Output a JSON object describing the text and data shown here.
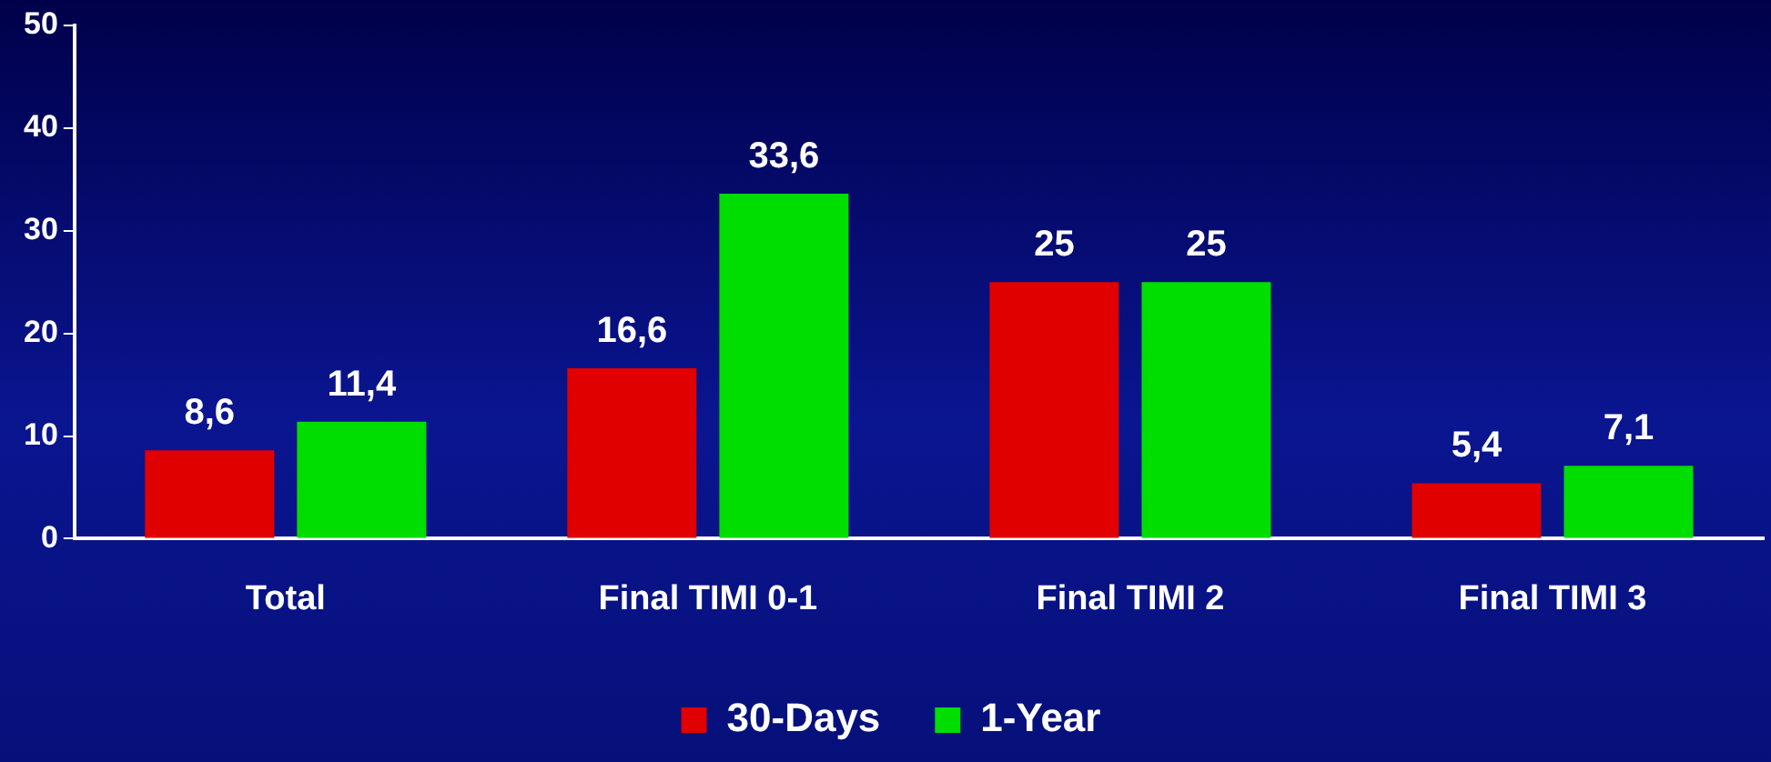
{
  "chart_data": {
    "type": "bar",
    "categories": [
      "Total",
      "Final TIMI 0-1",
      "Final TIMI 2",
      "Final TIMI 3"
    ],
    "series": [
      {
        "name": "30-Days",
        "color": "#e00000",
        "values": [
          8.6,
          16.6,
          25,
          5.4
        ],
        "value_labels": [
          "8,6",
          "16,6",
          "25",
          "5,4"
        ]
      },
      {
        "name": "1-Year",
        "color": "#00dd00",
        "values": [
          11.4,
          33.6,
          25,
          7.1
        ],
        "value_labels": [
          "11,4",
          "33,6",
          "25",
          "7,1"
        ]
      }
    ],
    "ylim": [
      0,
      50
    ],
    "yticks": [
      0,
      10,
      20,
      30,
      40,
      50
    ],
    "grid": false,
    "legend": "bottom"
  }
}
